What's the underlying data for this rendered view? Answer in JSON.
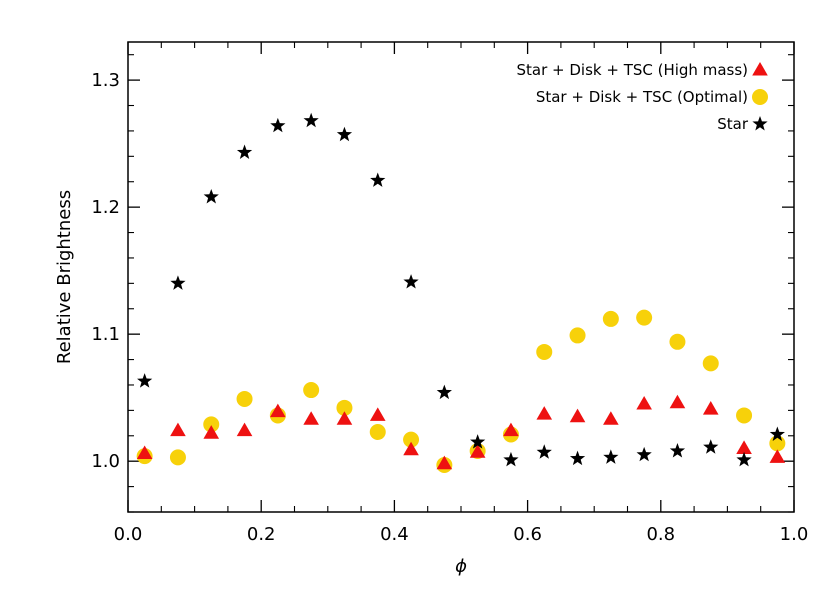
{
  "chart_data": {
    "type": "scatter",
    "xlabel": "ϕ",
    "ylabel": "Relative Brightness",
    "xlim": [
      0.0,
      1.0
    ],
    "ylim": [
      0.96,
      1.33
    ],
    "xticks": [
      "0.0",
      "0.2",
      "0.4",
      "0.6",
      "0.8",
      "1.0"
    ],
    "yticks": [
      "1.0",
      "1.1",
      "1.2",
      "1.3"
    ],
    "legend_position": "top-right",
    "series": [
      {
        "name": "Star + Disk + TSC (High mass)",
        "marker": "triangle",
        "color": "#ee1111",
        "points": [
          [
            0.025,
            1.006
          ],
          [
            0.075,
            1.024
          ],
          [
            0.125,
            1.022
          ],
          [
            0.175,
            1.024
          ],
          [
            0.225,
            1.039
          ],
          [
            0.275,
            1.033
          ],
          [
            0.325,
            1.033
          ],
          [
            0.375,
            1.036
          ],
          [
            0.425,
            1.009
          ],
          [
            0.475,
            0.998
          ],
          [
            0.525,
            1.007
          ],
          [
            0.575,
            1.024
          ],
          [
            0.625,
            1.037
          ],
          [
            0.675,
            1.035
          ],
          [
            0.725,
            1.033
          ],
          [
            0.775,
            1.045
          ],
          [
            0.825,
            1.046
          ],
          [
            0.875,
            1.041
          ],
          [
            0.925,
            1.01
          ],
          [
            0.975,
            1.003
          ]
        ]
      },
      {
        "name": "Star + Disk + TSC (Optimal)",
        "marker": "circle",
        "color": "#f7d10a",
        "points": [
          [
            0.025,
            1.004
          ],
          [
            0.075,
            1.003
          ],
          [
            0.125,
            1.029
          ],
          [
            0.175,
            1.049
          ],
          [
            0.225,
            1.036
          ],
          [
            0.275,
            1.056
          ],
          [
            0.325,
            1.042
          ],
          [
            0.375,
            1.023
          ],
          [
            0.425,
            1.017
          ],
          [
            0.475,
            0.997
          ],
          [
            0.525,
            1.008
          ],
          [
            0.575,
            1.021
          ],
          [
            0.625,
            1.086
          ],
          [
            0.675,
            1.099
          ],
          [
            0.725,
            1.112
          ],
          [
            0.775,
            1.113
          ],
          [
            0.825,
            1.094
          ],
          [
            0.875,
            1.077
          ],
          [
            0.925,
            1.036
          ],
          [
            0.975,
            1.014
          ]
        ]
      },
      {
        "name": "Star",
        "marker": "star",
        "color": "#000000",
        "points": [
          [
            0.025,
            1.063
          ],
          [
            0.075,
            1.14
          ],
          [
            0.125,
            1.208
          ],
          [
            0.175,
            1.243
          ],
          [
            0.225,
            1.264
          ],
          [
            0.275,
            1.268
          ],
          [
            0.325,
            1.257
          ],
          [
            0.375,
            1.221
          ],
          [
            0.425,
            1.141
          ],
          [
            0.475,
            1.054
          ],
          [
            0.525,
            1.015
          ],
          [
            0.575,
            1.001
          ],
          [
            0.625,
            1.007
          ],
          [
            0.675,
            1.002
          ],
          [
            0.725,
            1.003
          ],
          [
            0.775,
            1.005
          ],
          [
            0.825,
            1.008
          ],
          [
            0.875,
            1.011
          ],
          [
            0.925,
            1.001
          ],
          [
            0.975,
            1.021
          ]
        ]
      }
    ]
  }
}
